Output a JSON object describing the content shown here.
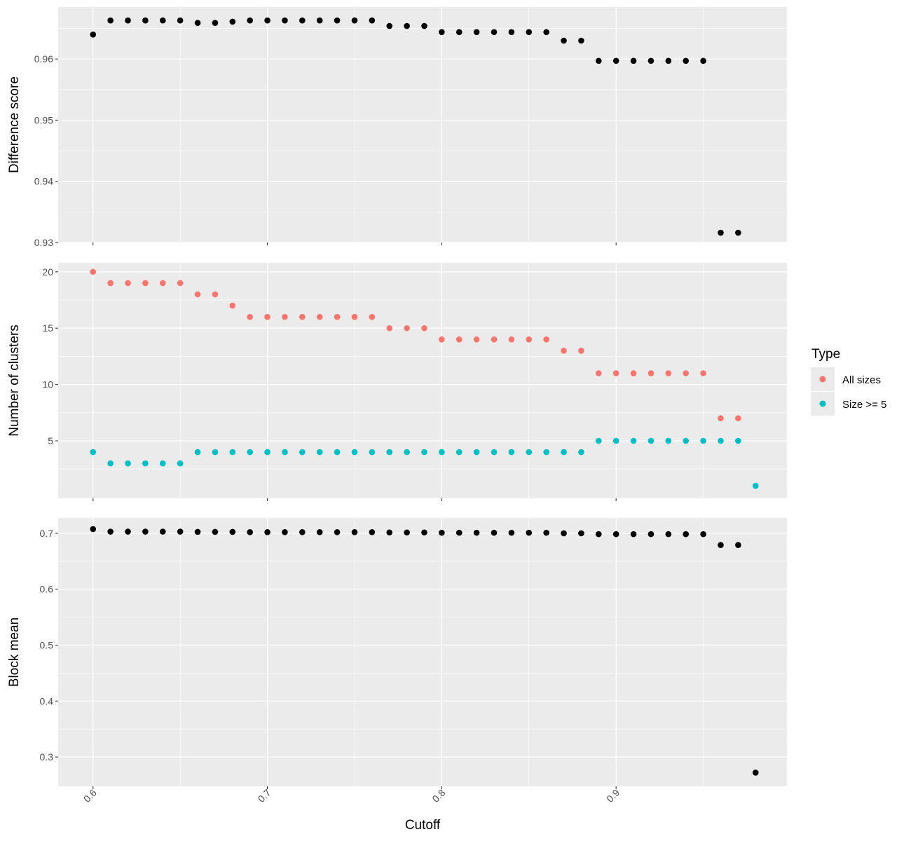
{
  "chart_data": {
    "type": "scatter",
    "xlabel": "Cutoff",
    "x_ticks": [
      0.6,
      0.7,
      0.8,
      0.9
    ],
    "xlim": [
      0.58,
      0.998
    ],
    "legend": {
      "title": "Type",
      "placement": "right",
      "entries": [
        {
          "name": "All sizes",
          "color": "#F8766D"
        },
        {
          "name": "Size >= 5",
          "color": "#00BFC4"
        }
      ]
    },
    "grid": true,
    "panels": [
      {
        "ylabel": "Difference score",
        "ylim": [
          0.93,
          0.9685
        ],
        "y_ticks": [
          0.93,
          0.94,
          0.95,
          0.96
        ],
        "y_tick_labels": [
          "0.93",
          "0.94",
          "0.95",
          "0.96"
        ],
        "series": [
          {
            "color": "#000000",
            "points": [
              [
                0.6,
                0.964
              ],
              [
                0.61,
                0.9663
              ],
              [
                0.62,
                0.9663
              ],
              [
                0.63,
                0.9663
              ],
              [
                0.64,
                0.9663
              ],
              [
                0.65,
                0.9663
              ],
              [
                0.66,
                0.9659
              ],
              [
                0.67,
                0.9659
              ],
              [
                0.68,
                0.9661
              ],
              [
                0.69,
                0.9663
              ],
              [
                0.7,
                0.9663
              ],
              [
                0.71,
                0.9663
              ],
              [
                0.72,
                0.9663
              ],
              [
                0.73,
                0.9663
              ],
              [
                0.74,
                0.9663
              ],
              [
                0.75,
                0.9663
              ],
              [
                0.76,
                0.9663
              ],
              [
                0.77,
                0.9654
              ],
              [
                0.78,
                0.9654
              ],
              [
                0.79,
                0.9654
              ],
              [
                0.8,
                0.9644
              ],
              [
                0.81,
                0.9644
              ],
              [
                0.82,
                0.9644
              ],
              [
                0.83,
                0.9644
              ],
              [
                0.84,
                0.9644
              ],
              [
                0.85,
                0.9644
              ],
              [
                0.86,
                0.9644
              ],
              [
                0.87,
                0.963
              ],
              [
                0.88,
                0.963
              ],
              [
                0.89,
                0.9597
              ],
              [
                0.9,
                0.9597
              ],
              [
                0.91,
                0.9597
              ],
              [
                0.92,
                0.9597
              ],
              [
                0.93,
                0.9597
              ],
              [
                0.94,
                0.9597
              ],
              [
                0.95,
                0.9597
              ],
              [
                0.96,
                0.9316
              ],
              [
                0.97,
                0.9316
              ]
            ]
          }
        ]
      },
      {
        "ylabel": "Number of clusters",
        "ylim": [
          -0.1,
          20.8
        ],
        "y_ticks": [
          5,
          10,
          15,
          20
        ],
        "y_tick_labels": [
          "5",
          "10",
          "15",
          "20"
        ],
        "minor_y": [
          2.5,
          7.5,
          12.5,
          17.5
        ],
        "series": [
          {
            "name": "All sizes",
            "color": "#F8766D",
            "points": [
              [
                0.6,
                20
              ],
              [
                0.61,
                19
              ],
              [
                0.62,
                19
              ],
              [
                0.63,
                19
              ],
              [
                0.64,
                19
              ],
              [
                0.65,
                19
              ],
              [
                0.66,
                18
              ],
              [
                0.67,
                18
              ],
              [
                0.68,
                17
              ],
              [
                0.69,
                16
              ],
              [
                0.7,
                16
              ],
              [
                0.71,
                16
              ],
              [
                0.72,
                16
              ],
              [
                0.73,
                16
              ],
              [
                0.74,
                16
              ],
              [
                0.75,
                16
              ],
              [
                0.76,
                16
              ],
              [
                0.77,
                15
              ],
              [
                0.78,
                15
              ],
              [
                0.79,
                15
              ],
              [
                0.8,
                14
              ],
              [
                0.81,
                14
              ],
              [
                0.82,
                14
              ],
              [
                0.83,
                14
              ],
              [
                0.84,
                14
              ],
              [
                0.85,
                14
              ],
              [
                0.86,
                14
              ],
              [
                0.87,
                13
              ],
              [
                0.88,
                13
              ],
              [
                0.89,
                11
              ],
              [
                0.9,
                11
              ],
              [
                0.91,
                11
              ],
              [
                0.92,
                11
              ],
              [
                0.93,
                11
              ],
              [
                0.94,
                11
              ],
              [
                0.95,
                11
              ],
              [
                0.96,
                7
              ],
              [
                0.97,
                7
              ]
            ]
          },
          {
            "name": "Size >= 5",
            "color": "#00BFC4",
            "points": [
              [
                0.6,
                4
              ],
              [
                0.61,
                3
              ],
              [
                0.62,
                3
              ],
              [
                0.63,
                3
              ],
              [
                0.64,
                3
              ],
              [
                0.65,
                3
              ],
              [
                0.66,
                4
              ],
              [
                0.67,
                4
              ],
              [
                0.68,
                4
              ],
              [
                0.69,
                4
              ],
              [
                0.7,
                4
              ],
              [
                0.71,
                4
              ],
              [
                0.72,
                4
              ],
              [
                0.73,
                4
              ],
              [
                0.74,
                4
              ],
              [
                0.75,
                4
              ],
              [
                0.76,
                4
              ],
              [
                0.77,
                4
              ],
              [
                0.78,
                4
              ],
              [
                0.79,
                4
              ],
              [
                0.8,
                4
              ],
              [
                0.81,
                4
              ],
              [
                0.82,
                4
              ],
              [
                0.83,
                4
              ],
              [
                0.84,
                4
              ],
              [
                0.85,
                4
              ],
              [
                0.86,
                4
              ],
              [
                0.87,
                4
              ],
              [
                0.88,
                4
              ],
              [
                0.89,
                5
              ],
              [
                0.9,
                5
              ],
              [
                0.91,
                5
              ],
              [
                0.92,
                5
              ],
              [
                0.93,
                5
              ],
              [
                0.94,
                5
              ],
              [
                0.95,
                5
              ],
              [
                0.96,
                5
              ],
              [
                0.97,
                5
              ],
              [
                0.98,
                1
              ]
            ]
          }
        ]
      },
      {
        "ylabel": "Block mean",
        "ylim": [
          0.2475,
          0.7275
        ],
        "y_ticks": [
          0.3,
          0.4,
          0.5,
          0.6,
          0.7
        ],
        "y_tick_labels": [
          "0.3",
          "0.4",
          "0.5",
          "0.6",
          "0.7"
        ],
        "series": [
          {
            "color": "#000000",
            "points": [
              [
                0.6,
                0.7075
              ],
              [
                0.61,
                0.703
              ],
              [
                0.62,
                0.703
              ],
              [
                0.63,
                0.703
              ],
              [
                0.64,
                0.703
              ],
              [
                0.65,
                0.703
              ],
              [
                0.66,
                0.7025
              ],
              [
                0.67,
                0.7025
              ],
              [
                0.68,
                0.7025
              ],
              [
                0.69,
                0.702
              ],
              [
                0.7,
                0.702
              ],
              [
                0.71,
                0.702
              ],
              [
                0.72,
                0.702
              ],
              [
                0.73,
                0.702
              ],
              [
                0.74,
                0.702
              ],
              [
                0.75,
                0.702
              ],
              [
                0.76,
                0.702
              ],
              [
                0.77,
                0.7015
              ],
              [
                0.78,
                0.7015
              ],
              [
                0.79,
                0.7015
              ],
              [
                0.8,
                0.701
              ],
              [
                0.81,
                0.701
              ],
              [
                0.82,
                0.701
              ],
              [
                0.83,
                0.701
              ],
              [
                0.84,
                0.701
              ],
              [
                0.85,
                0.701
              ],
              [
                0.86,
                0.701
              ],
              [
                0.87,
                0.7
              ],
              [
                0.88,
                0.7
              ],
              [
                0.89,
                0.6985
              ],
              [
                0.9,
                0.6985
              ],
              [
                0.91,
                0.6985
              ],
              [
                0.92,
                0.6985
              ],
              [
                0.93,
                0.6985
              ],
              [
                0.94,
                0.6985
              ],
              [
                0.95,
                0.6985
              ],
              [
                0.96,
                0.679
              ],
              [
                0.97,
                0.679
              ],
              [
                0.98,
                0.272
              ]
            ]
          }
        ]
      }
    ]
  }
}
